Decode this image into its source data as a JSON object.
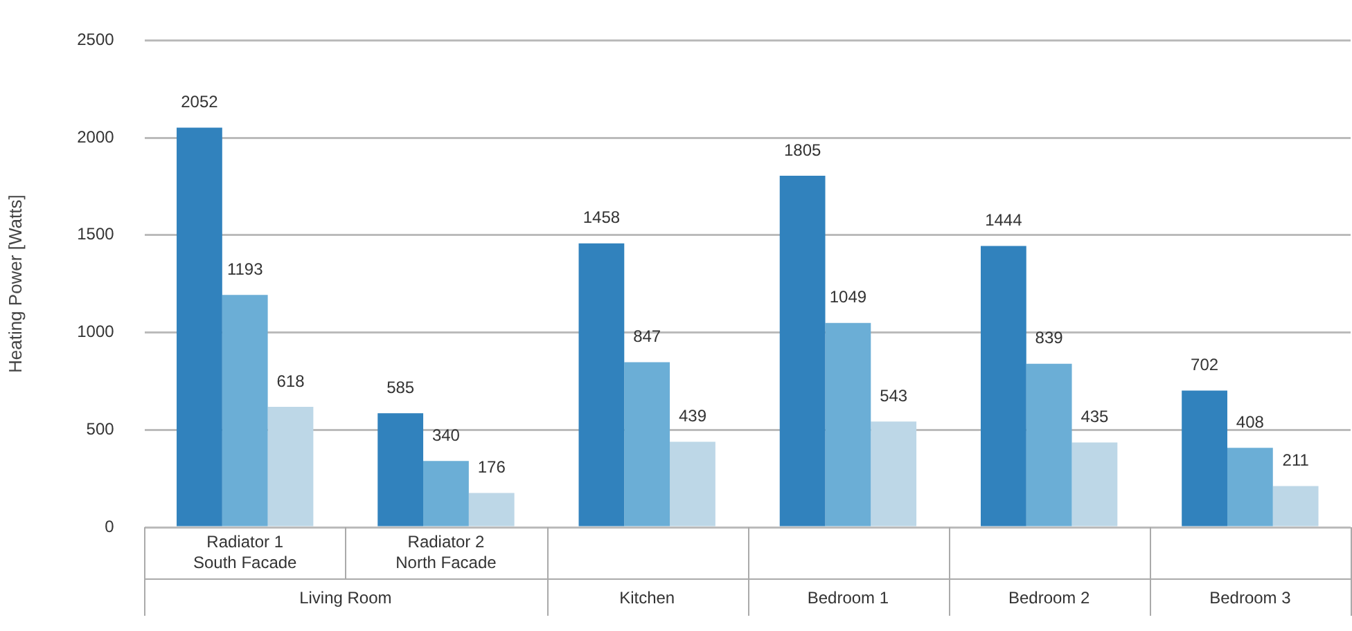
{
  "chart_data": {
    "type": "bar",
    "ylabel": "Heating Power [Watts]",
    "categories": [
      "Radiator 1\nSouth Facade",
      "Radiator 2\nNorth Facade",
      null,
      null,
      null,
      null
    ],
    "annotations": [
      "Living Room",
      "Kitchen",
      "Bedroom 1",
      "Bedroom 2",
      "Bedroom 3"
    ],
    "series": [
      {
        "color": "#3182bd",
        "values": [
          2052,
          585,
          1458,
          1805,
          1444,
          702
        ]
      },
      {
        "color": "#6baed6",
        "values": [
          1193,
          340,
          847,
          1049,
          839,
          408
        ]
      },
      {
        "color": "#bdd7e7",
        "values": [
          618,
          176,
          439,
          543,
          435,
          211
        ]
      }
    ],
    "ylim": [
      0,
      2500
    ],
    "yticks": [
      0,
      500,
      1000,
      1500,
      2000,
      2500
    ],
    "grid": "y",
    "legend": false,
    "data_labels": true
  }
}
